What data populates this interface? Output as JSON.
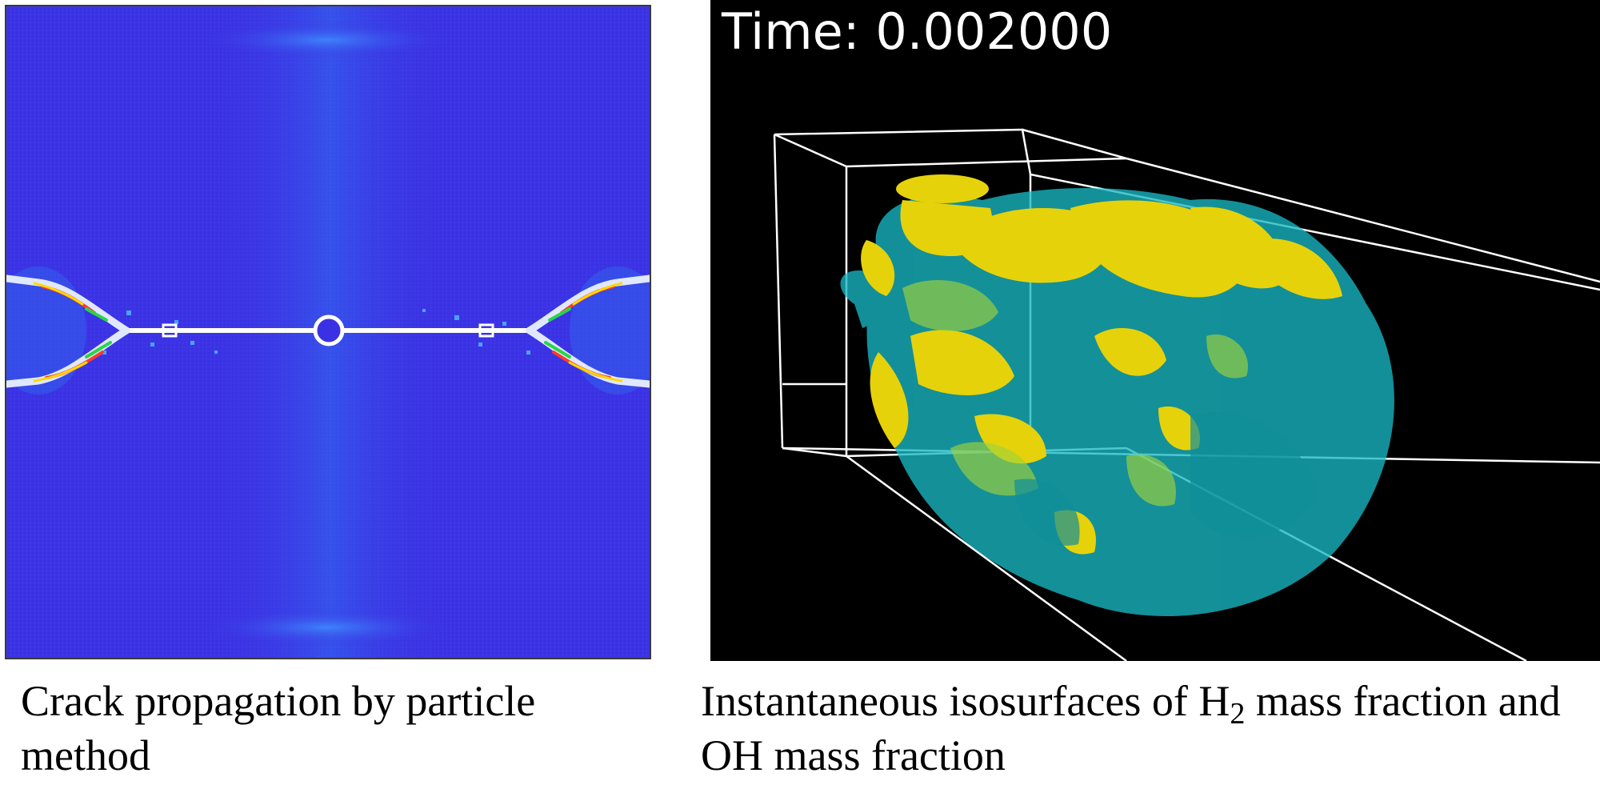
{
  "left_panel": {
    "caption": "Crack propagation by particle method"
  },
  "right_panel": {
    "time_label": "Time: 0.002000",
    "caption_part1": "Instantaneous isosurfaces of H",
    "caption_sub": "2",
    "caption_part2": " mass fraction and OH mass fraction"
  },
  "colors": {
    "field_blue": "#3a2fe0",
    "crack_white": "#ffffff",
    "h2_yellow": "#e6d20a",
    "oh_cyan": "#19b8c4",
    "background_black": "#000000"
  }
}
